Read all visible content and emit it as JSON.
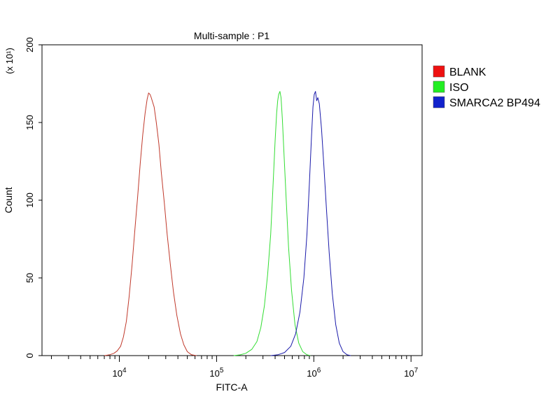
{
  "chart_data": {
    "type": "line",
    "title": "Multi-sample : P1",
    "xlabel": "FITC-A",
    "ylabel": "Count",
    "y_multiplier": "(x 10¹)",
    "x_scale": "log",
    "xlim": [
      1600,
      13000000
    ],
    "ylim": [
      0,
      200
    ],
    "xticks": [
      {
        "value": 10000,
        "base": "10",
        "exp": "4"
      },
      {
        "value": 100000,
        "base": "10",
        "exp": "5"
      },
      {
        "value": 1000000,
        "base": "10",
        "exp": "6"
      },
      {
        "value": 10000000,
        "base": "10",
        "exp": "7"
      }
    ],
    "yticks": [
      0,
      50,
      100,
      150,
      200
    ],
    "legend_position": "right",
    "series": [
      {
        "name": "BLANK",
        "color": "#c0392b",
        "legend_color": "#ee1111",
        "points": [
          [
            7000,
            0
          ],
          [
            8000,
            0.6
          ],
          [
            8800,
            1.5
          ],
          [
            9500,
            3
          ],
          [
            10300,
            6
          ],
          [
            11000,
            12
          ],
          [
            11800,
            22
          ],
          [
            12600,
            38
          ],
          [
            13500,
            58
          ],
          [
            14400,
            80
          ],
          [
            15400,
            102
          ],
          [
            16400,
            124
          ],
          [
            17400,
            142
          ],
          [
            18400,
            156
          ],
          [
            19300,
            165
          ],
          [
            20000,
            169
          ],
          [
            20700,
            168
          ],
          [
            21300,
            166
          ],
          [
            22000,
            163
          ],
          [
            22800,
            160
          ],
          [
            24000,
            150
          ],
          [
            25500,
            136
          ],
          [
            27000,
            118
          ],
          [
            29000,
            98
          ],
          [
            31000,
            78
          ],
          [
            33500,
            58
          ],
          [
            36000,
            41
          ],
          [
            39000,
            26
          ],
          [
            42500,
            14
          ],
          [
            46000,
            7
          ],
          [
            50000,
            2.5
          ],
          [
            55000,
            0.6
          ],
          [
            62000,
            0
          ]
        ]
      },
      {
        "name": "ISO",
        "color": "#33dd33",
        "legend_color": "#22ee22",
        "points": [
          [
            150000,
            0
          ],
          [
            175000,
            0.5
          ],
          [
            200000,
            1.5
          ],
          [
            230000,
            4
          ],
          [
            260000,
            9
          ],
          [
            285000,
            18
          ],
          [
            310000,
            32
          ],
          [
            335000,
            52
          ],
          [
            360000,
            78
          ],
          [
            380000,
            108
          ],
          [
            400000,
            138
          ],
          [
            415000,
            156
          ],
          [
            425000,
            164
          ],
          [
            435000,
            168
          ],
          [
            448000,
            170
          ],
          [
            460000,
            166
          ],
          [
            475000,
            152
          ],
          [
            495000,
            128
          ],
          [
            520000,
            100
          ],
          [
            550000,
            70
          ],
          [
            590000,
            42
          ],
          [
            640000,
            20
          ],
          [
            700000,
            8
          ],
          [
            770000,
            2.5
          ],
          [
            850000,
            0.5
          ],
          [
            920000,
            0
          ]
        ]
      },
      {
        "name": "SMARCA2 BP494",
        "color": "#1a1aaa",
        "legend_color": "#1122cc",
        "points": [
          [
            360000,
            0
          ],
          [
            430000,
            0.6
          ],
          [
            500000,
            2
          ],
          [
            580000,
            6
          ],
          [
            650000,
            14
          ],
          [
            720000,
            28
          ],
          [
            790000,
            50
          ],
          [
            850000,
            78
          ],
          [
            900000,
            110
          ],
          [
            945000,
            140
          ],
          [
            980000,
            160
          ],
          [
            1010000,
            168
          ],
          [
            1040000,
            170
          ],
          [
            1070000,
            164
          ],
          [
            1100000,
            166
          ],
          [
            1140000,
            162
          ],
          [
            1200000,
            146
          ],
          [
            1270000,
            122
          ],
          [
            1350000,
            94
          ],
          [
            1440000,
            66
          ],
          [
            1550000,
            40
          ],
          [
            1680000,
            20
          ],
          [
            1830000,
            8
          ],
          [
            2000000,
            2.5
          ],
          [
            2200000,
            0.5
          ],
          [
            2400000,
            0
          ]
        ]
      }
    ]
  }
}
